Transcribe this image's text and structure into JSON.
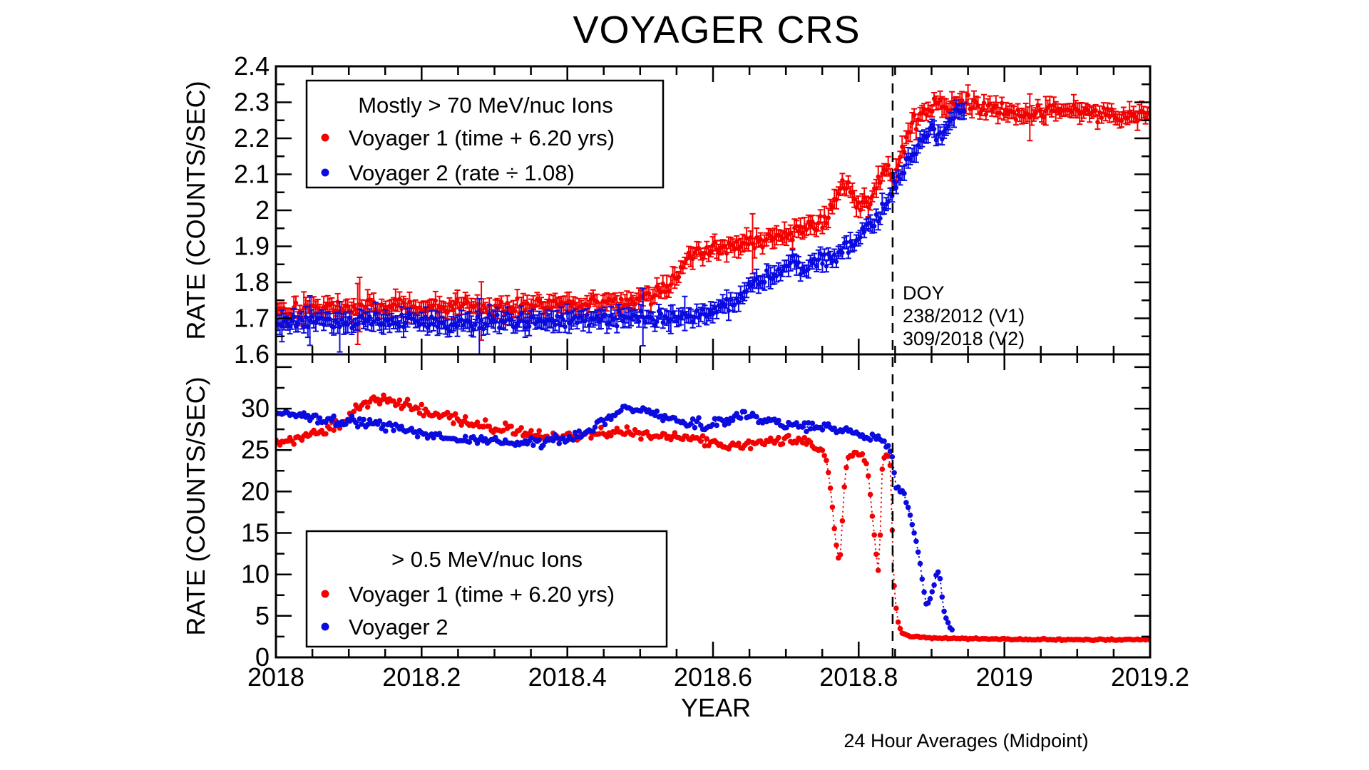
{
  "title": "VOYAGER CRS",
  "xlabel": "YEAR",
  "footnote": "24 Hour Averages (Midpoint)",
  "colors": {
    "v1": "#f40000",
    "v2": "#0b0bdf",
    "axis": "#000000",
    "background": "#ffffff"
  },
  "x_axis": {
    "min": 2018,
    "max": 2019.2,
    "major_step": 0.2,
    "minor_step": 0.05,
    "ticks": [
      {
        "value": 2018.0,
        "label": "2018"
      },
      {
        "value": 2018.2,
        "label": "2018.2"
      },
      {
        "value": 2018.4,
        "label": "2018.4"
      },
      {
        "value": 2018.6,
        "label": "2018.6"
      },
      {
        "value": 2018.8,
        "label": "2018.8"
      },
      {
        "value": 2019.0,
        "label": "2019"
      },
      {
        "value": 2019.2,
        "label": "2019.2"
      }
    ]
  },
  "dashed_line_year": 2018.8466,
  "chart_data": [
    {
      "id": "penetrating-rate-panel",
      "type": "scatter",
      "ylabel": "RATE (COUNTS/SEC)",
      "ylim": [
        1.6,
        2.4
      ],
      "yticks": [
        {
          "value": 1.6,
          "label": "1.6"
        },
        {
          "value": 1.7,
          "label": "1.7"
        },
        {
          "value": 1.8,
          "label": "1.8"
        },
        {
          "value": 1.9,
          "label": "1.9"
        },
        {
          "value": 2.0,
          "label": "2"
        },
        {
          "value": 2.1,
          "label": "2.1"
        },
        {
          "value": 2.2,
          "label": "2.2"
        },
        {
          "value": 2.3,
          "label": "2.3"
        },
        {
          "value": 2.4,
          "label": "2.4"
        }
      ],
      "y_minor_step": 0.05,
      "legend": {
        "header": "Mostly > 70 MeV/nuc Ions",
        "items": [
          {
            "label": "Voyager 1 (time + 6.20 yrs)",
            "color_key": "v1"
          },
          {
            "label": "Voyager 2 (rate ÷ 1.08)",
            "color_key": "v2"
          }
        ]
      },
      "annotation": {
        "x": 2018.862,
        "y": 1.775,
        "lines": [
          "DOY",
          "238/2012 (V1)",
          "309/2018 (V2)"
        ]
      },
      "series": [
        {
          "name": "Voyager 1 (time + 6.20 yrs)",
          "color_key": "v1",
          "start": 2018.0,
          "end": 2019.2,
          "noise": 0.011,
          "error_bars": true,
          "seed": 101,
          "anchors": [
            [
              2018.0,
              1.72
            ],
            [
              2018.05,
              1.73
            ],
            [
              2018.1,
              1.726
            ],
            [
              2018.15,
              1.734
            ],
            [
              2018.2,
              1.729
            ],
            [
              2018.25,
              1.734
            ],
            [
              2018.3,
              1.73
            ],
            [
              2018.35,
              1.738
            ],
            [
              2018.4,
              1.741
            ],
            [
              2018.45,
              1.746
            ],
            [
              2018.49,
              1.752
            ],
            [
              2018.52,
              1.762
            ],
            [
              2018.545,
              1.805
            ],
            [
              2018.565,
              1.862
            ],
            [
              2018.59,
              1.888
            ],
            [
              2018.62,
              1.9
            ],
            [
              2018.65,
              1.908
            ],
            [
              2018.68,
              1.918
            ],
            [
              2018.7,
              1.93
            ],
            [
              2018.72,
              1.944
            ],
            [
              2018.74,
              1.955
            ],
            [
              2018.755,
              1.978
            ],
            [
              2018.775,
              2.065
            ],
            [
              2018.79,
              2.05
            ],
            [
              2018.8,
              2.012
            ],
            [
              2018.815,
              2.03
            ],
            [
              2018.83,
              2.1
            ],
            [
              2018.84,
              2.118
            ],
            [
              2018.849,
              2.072
            ],
            [
              2018.858,
              2.16
            ],
            [
              2018.87,
              2.222
            ],
            [
              2018.885,
              2.262
            ],
            [
              2018.9,
              2.282
            ],
            [
              2018.93,
              2.296
            ],
            [
              2018.95,
              2.3
            ],
            [
              2018.97,
              2.286
            ],
            [
              2019.0,
              2.28
            ],
            [
              2019.04,
              2.268
            ],
            [
              2019.08,
              2.275
            ],
            [
              2019.12,
              2.268
            ],
            [
              2019.16,
              2.262
            ],
            [
              2019.2,
              2.268
            ]
          ]
        },
        {
          "name": "Voyager 2 (rate ÷ 1.08)",
          "color_key": "v2",
          "start": 2018.0,
          "end": 2018.945,
          "noise": 0.01,
          "error_bars": true,
          "seed": 202,
          "anchors": [
            [
              2018.0,
              1.69
            ],
            [
              2018.05,
              1.685
            ],
            [
              2018.1,
              1.692
            ],
            [
              2018.15,
              1.688
            ],
            [
              2018.2,
              1.69
            ],
            [
              2018.25,
              1.685
            ],
            [
              2018.3,
              1.693
            ],
            [
              2018.35,
              1.69
            ],
            [
              2018.4,
              1.695
            ],
            [
              2018.45,
              1.698
            ],
            [
              2018.5,
              1.7
            ],
            [
              2018.55,
              1.705
            ],
            [
              2018.58,
              1.712
            ],
            [
              2018.6,
              1.72
            ],
            [
              2018.62,
              1.74
            ],
            [
              2018.64,
              1.765
            ],
            [
              2018.655,
              1.795
            ],
            [
              2018.67,
              1.805
            ],
            [
              2018.685,
              1.82
            ],
            [
              2018.7,
              1.845
            ],
            [
              2018.715,
              1.855
            ],
            [
              2018.725,
              1.832
            ],
            [
              2018.74,
              1.862
            ],
            [
              2018.755,
              1.872
            ],
            [
              2018.765,
              1.858
            ],
            [
              2018.78,
              1.895
            ],
            [
              2018.795,
              1.915
            ],
            [
              2018.81,
              1.945
            ],
            [
              2018.825,
              1.975
            ],
            [
              2018.84,
              2.03
            ],
            [
              2018.848,
              2.06
            ],
            [
              2018.86,
              2.11
            ],
            [
              2018.875,
              2.15
            ],
            [
              2018.89,
              2.2
            ],
            [
              2018.9,
              2.235
            ],
            [
              2018.91,
              2.195
            ],
            [
              2018.92,
              2.225
            ],
            [
              2018.93,
              2.27
            ],
            [
              2018.945,
              2.272
            ]
          ]
        }
      ]
    },
    {
      "id": "low-energy-rate-panel",
      "type": "scatter",
      "ylabel": "RATE (COUNTS/SEC)",
      "ylim": [
        0,
        36.54
      ],
      "yticks": [
        {
          "value": 0,
          "label": "0"
        },
        {
          "value": 5,
          "label": "5"
        },
        {
          "value": 10,
          "label": "10"
        },
        {
          "value": 15,
          "label": "15"
        },
        {
          "value": 20,
          "label": "20"
        },
        {
          "value": 25,
          "label": "25"
        },
        {
          "value": 30,
          "label": "30"
        }
      ],
      "y_minor_step": 2.5,
      "legend": {
        "header": "> 0.5 MeV/nuc Ions",
        "items": [
          {
            "label": "Voyager 1 (time + 6.20 yrs)",
            "color_key": "v1"
          },
          {
            "label": "Voyager 2",
            "color_key": "v2"
          }
        ]
      },
      "annotation": null,
      "series": [
        {
          "name": "Voyager 1 (time + 6.20 yrs)",
          "color_key": "v1",
          "start": 2018.0,
          "end": 2019.2,
          "noise": 0.3,
          "error_bars": false,
          "seed": 303,
          "anchors": [
            [
              2018.0,
              25.9
            ],
            [
              2018.03,
              26.3
            ],
            [
              2018.06,
              27.0
            ],
            [
              2018.09,
              28.3
            ],
            [
              2018.11,
              29.8
            ],
            [
              2018.13,
              31.0
            ],
            [
              2018.15,
              30.8
            ],
            [
              2018.18,
              30.3
            ],
            [
              2018.21,
              29.6
            ],
            [
              2018.24,
              28.9
            ],
            [
              2018.27,
              28.3
            ],
            [
              2018.3,
              27.8
            ],
            [
              2018.33,
              27.2
            ],
            [
              2018.36,
              26.7
            ],
            [
              2018.4,
              26.3
            ],
            [
              2018.43,
              26.9
            ],
            [
              2018.46,
              27.2
            ],
            [
              2018.5,
              26.9
            ],
            [
              2018.54,
              26.7
            ],
            [
              2018.58,
              26.3
            ],
            [
              2018.62,
              25.4
            ],
            [
              2018.65,
              25.7
            ],
            [
              2018.68,
              26.1
            ],
            [
              2018.71,
              26.2
            ],
            [
              2018.73,
              26.1
            ],
            [
              2018.755,
              24.3
            ],
            [
              2018.762,
              20.0
            ],
            [
              2018.768,
              14.0
            ],
            [
              2018.774,
              11.0
            ],
            [
              2018.78,
              20.5
            ],
            [
              2018.785,
              24.0
            ],
            [
              2018.795,
              24.5
            ],
            [
              2018.805,
              24.3
            ],
            [
              2018.812,
              23.0
            ],
            [
              2018.818,
              17.5
            ],
            [
              2018.824,
              12.5
            ],
            [
              2018.828,
              9.6
            ],
            [
              2018.832,
              23.0
            ],
            [
              2018.838,
              24.4
            ],
            [
              2018.843,
              23.8
            ],
            [
              2018.8465,
              14.0
            ],
            [
              2018.849,
              7.9
            ],
            [
              2018.852,
              5.5
            ],
            [
              2018.855,
              3.6
            ],
            [
              2018.86,
              2.9
            ],
            [
              2018.87,
              2.55
            ],
            [
              2018.9,
              2.35
            ],
            [
              2018.95,
              2.25
            ],
            [
              2019.0,
              2.2
            ],
            [
              2019.05,
              2.15
            ],
            [
              2019.1,
              2.15
            ],
            [
              2019.15,
              2.12
            ],
            [
              2019.2,
              2.15
            ]
          ]
        },
        {
          "name": "Voyager 2",
          "color_key": "v2",
          "start": 2018.0,
          "end": 2018.93,
          "noise": 0.28,
          "error_bars": false,
          "seed": 404,
          "anchors": [
            [
              2018.0,
              29.6
            ],
            [
              2018.03,
              29.1
            ],
            [
              2018.06,
              28.7
            ],
            [
              2018.1,
              28.4
            ],
            [
              2018.13,
              28.2
            ],
            [
              2018.16,
              27.6
            ],
            [
              2018.2,
              27.0
            ],
            [
              2018.24,
              26.4
            ],
            [
              2018.28,
              26.1
            ],
            [
              2018.32,
              25.9
            ],
            [
              2018.36,
              25.9
            ],
            [
              2018.4,
              26.3
            ],
            [
              2018.43,
              27.4
            ],
            [
              2018.46,
              29.2
            ],
            [
              2018.48,
              30.0
            ],
            [
              2018.5,
              29.8
            ],
            [
              2018.53,
              29.1
            ],
            [
              2018.56,
              28.4
            ],
            [
              2018.59,
              28.0
            ],
            [
              2018.62,
              28.5
            ],
            [
              2018.645,
              29.3
            ],
            [
              2018.66,
              29.0
            ],
            [
              2018.68,
              28.3
            ],
            [
              2018.7,
              27.9
            ],
            [
              2018.72,
              27.9
            ],
            [
              2018.75,
              27.8
            ],
            [
              2018.77,
              27.6
            ],
            [
              2018.79,
              27.2
            ],
            [
              2018.81,
              26.8
            ],
            [
              2018.825,
              26.3
            ],
            [
              2018.838,
              25.6
            ],
            [
              2018.845,
              24.9
            ],
            [
              2018.85,
              21.0
            ],
            [
              2018.856,
              19.8
            ],
            [
              2018.862,
              19.9
            ],
            [
              2018.868,
              17.8
            ],
            [
              2018.874,
              15.8
            ],
            [
              2018.879,
              14.0
            ],
            [
              2018.884,
              11.3
            ],
            [
              2018.889,
              8.4
            ],
            [
              2018.893,
              6.0
            ],
            [
              2018.898,
              7.2
            ],
            [
              2018.904,
              8.6
            ],
            [
              2018.907,
              10.4
            ],
            [
              2018.911,
              9.9
            ],
            [
              2018.915,
              6.9
            ],
            [
              2018.918,
              5.0
            ],
            [
              2018.922,
              4.3
            ],
            [
              2018.926,
              3.4
            ],
            [
              2018.93,
              3.2
            ]
          ]
        }
      ]
    }
  ]
}
